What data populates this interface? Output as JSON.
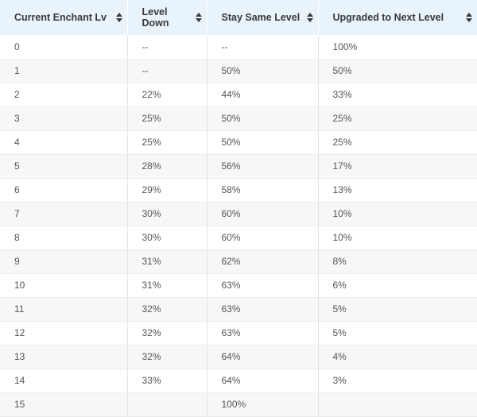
{
  "table": {
    "headers": [
      "Current Enchant Lv",
      "Level Down",
      "Stay Same Level",
      "Upgraded to Next Level"
    ],
    "header_lines": [
      [
        "Current Enchant Lv"
      ],
      [
        "Level",
        "Down"
      ],
      [
        "Stay Same Level"
      ],
      [
        "Upgraded to Next Level"
      ]
    ],
    "sort_icon": "sort-updown-icon",
    "header_bg": "#e8f3fb",
    "rows": [
      [
        "0",
        "--",
        "--",
        "100%"
      ],
      [
        "1",
        "--",
        "50%",
        "50%"
      ],
      [
        "2",
        "22%",
        "44%",
        "33%"
      ],
      [
        "3",
        "25%",
        "50%",
        "25%"
      ],
      [
        "4",
        "25%",
        "50%",
        "25%"
      ],
      [
        "5",
        "28%",
        "56%",
        "17%"
      ],
      [
        "6",
        "29%",
        "58%",
        "13%"
      ],
      [
        "7",
        "30%",
        "60%",
        "10%"
      ],
      [
        "8",
        "30%",
        "60%",
        "10%"
      ],
      [
        "9",
        "31%",
        "62%",
        "8%"
      ],
      [
        "10",
        "31%",
        "63%",
        "6%"
      ],
      [
        "11",
        "32%",
        "63%",
        "5%"
      ],
      [
        "12",
        "32%",
        "63%",
        "5%"
      ],
      [
        "13",
        "32%",
        "64%",
        "4%"
      ],
      [
        "14",
        "33%",
        "64%",
        "3%"
      ],
      [
        "15",
        "",
        "100%",
        ""
      ]
    ]
  }
}
